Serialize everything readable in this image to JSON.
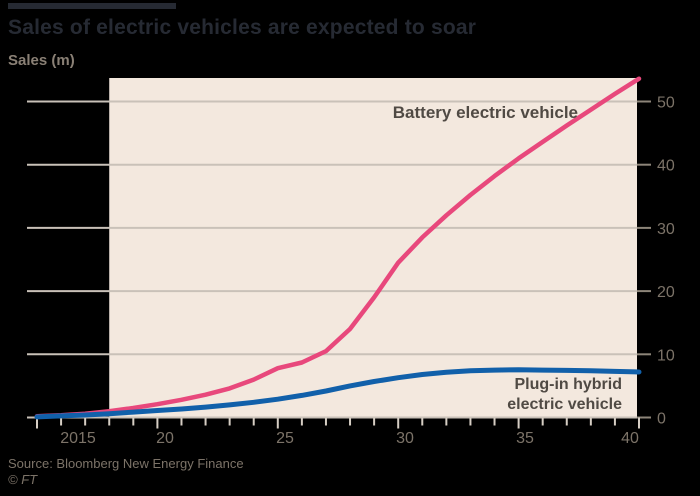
{
  "title": "Sales of electric vehicles are expected to soar",
  "subtitle": "Sales (m)",
  "source": "Source: Bloomberg New Energy Finance",
  "credit": "© FT",
  "colors": {
    "background": "#000000",
    "forecast_band": "#f3e8de",
    "gridline": "#c9c1b8",
    "tick": "#8d8579",
    "axis_text": "#7c7368",
    "title_text": "#262a33",
    "annotation_text": "#504a44",
    "bev_line": "#e8487c",
    "phev_line": "#1160aa"
  },
  "chart_data": {
    "type": "line",
    "title": "Sales of electric vehicles are expected to soar",
    "ylabel": "Sales (m)",
    "xlim": [
      2015,
      2040
    ],
    "ylim": [
      0,
      53.7
    ],
    "grid": "horizontal",
    "legend_position": "inline-annotations",
    "forecast_band": {
      "start": 2018,
      "end": 2040
    },
    "x_tick_labels": [
      "2015",
      "20",
      "25",
      "30",
      "35",
      "40"
    ],
    "x_tick_years": [
      2015,
      2020,
      2025,
      2030,
      2035,
      2040
    ],
    "y_tick_labels": [
      "0",
      "10",
      "20",
      "30",
      "40",
      "50"
    ],
    "y_tick_values": [
      0,
      10,
      20,
      30,
      40,
      50
    ],
    "x": [
      2015,
      2016,
      2017,
      2018,
      2019,
      2020,
      2021,
      2022,
      2023,
      2024,
      2025,
      2026,
      2027,
      2028,
      2029,
      2030,
      2031,
      2032,
      2033,
      2034,
      2035,
      2036,
      2037,
      2038,
      2039,
      2040
    ],
    "series": [
      {
        "name": "Battery electric vehicle",
        "color": "#e8487c",
        "values": [
          0.2,
          0.35,
          0.6,
          1.0,
          1.5,
          2.1,
          2.8,
          3.6,
          4.6,
          6.0,
          7.8,
          8.7,
          10.5,
          14.0,
          19.0,
          24.5,
          28.5,
          32.0,
          35.2,
          38.2,
          41.0,
          43.6,
          46.2,
          48.7,
          51.2,
          53.6
        ]
      },
      {
        "name": "Plug-in hybrid electric vehicle",
        "color": "#1160aa",
        "values": [
          0.1,
          0.25,
          0.4,
          0.6,
          0.85,
          1.1,
          1.35,
          1.65,
          2.0,
          2.4,
          2.9,
          3.5,
          4.2,
          5.0,
          5.7,
          6.3,
          6.8,
          7.15,
          7.4,
          7.5,
          7.55,
          7.5,
          7.45,
          7.4,
          7.3,
          7.2
        ]
      }
    ]
  }
}
